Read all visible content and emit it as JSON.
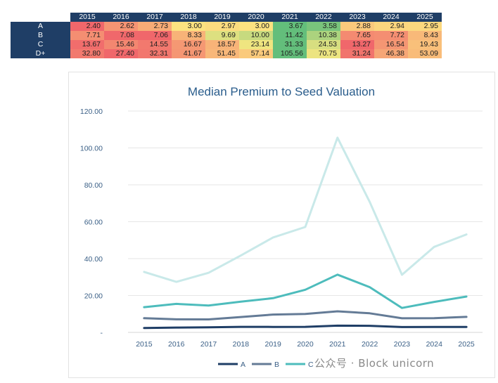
{
  "table": {
    "years": [
      "2015",
      "2016",
      "2017",
      "2018",
      "2019",
      "2020",
      "2021",
      "2022",
      "2023",
      "2024",
      "2025"
    ],
    "rows": [
      {
        "label": "A",
        "values": [
          "2.40",
          "2.62",
          "2.73",
          "3.00",
          "2.97",
          "3.00",
          "3.67",
          "3.58",
          "2.88",
          "2.94",
          "2.95"
        ]
      },
      {
        "label": "B",
        "values": [
          "7.71",
          "7.08",
          "7.06",
          "8.33",
          "9.69",
          "10.00",
          "11.42",
          "10.38",
          "7.65",
          "7.72",
          "8.43"
        ]
      },
      {
        "label": "C",
        "values": [
          "13.67",
          "15.46",
          "14.55",
          "16.67",
          "18.57",
          "23.14",
          "31.33",
          "24.53",
          "13.27",
          "16.54",
          "19.43"
        ]
      },
      {
        "label": "D+",
        "values": [
          "32.80",
          "27.40",
          "32.31",
          "41.67",
          "51.45",
          "57.14",
          "105.56",
          "70.75",
          "31.24",
          "46.38",
          "53.09"
        ]
      }
    ],
    "heat_colors": {
      "low": "#f0676b",
      "mid": "#fde981",
      "high": "#63be7b"
    }
  },
  "chart_data": {
    "type": "line",
    "title": "Median Premium to Seed Valuation",
    "xlabel": "",
    "ylabel": "",
    "x": [
      "2015",
      "2016",
      "2017",
      "2018",
      "2019",
      "2020",
      "2021",
      "2022",
      "2023",
      "2024",
      "2025"
    ],
    "ylim": [
      0,
      120
    ],
    "yticks": [
      "-",
      "20.00",
      "40.00",
      "60.00",
      "80.00",
      "100.00",
      "120.00"
    ],
    "grid": true,
    "legend_position": "bottom",
    "series": [
      {
        "name": "A",
        "color": "#1f3e66",
        "values": [
          2.4,
          2.62,
          2.73,
          3.0,
          2.97,
          3.0,
          3.67,
          3.58,
          2.88,
          2.94,
          2.95
        ]
      },
      {
        "name": "B",
        "color": "#647b96",
        "values": [
          7.71,
          7.08,
          7.06,
          8.33,
          9.69,
          10.0,
          11.42,
          10.38,
          7.65,
          7.72,
          8.43
        ]
      },
      {
        "name": "C",
        "color": "#4dbcbc",
        "values": [
          13.67,
          15.46,
          14.55,
          16.67,
          18.57,
          23.14,
          31.33,
          24.53,
          13.27,
          16.54,
          19.43
        ]
      },
      {
        "name": "",
        "color": "#c9e9e9",
        "values": [
          32.8,
          27.4,
          32.31,
          41.67,
          51.45,
          57.14,
          105.56,
          70.75,
          31.24,
          46.38,
          53.09
        ]
      }
    ]
  },
  "watermark": "公众号 · Block unicorn"
}
